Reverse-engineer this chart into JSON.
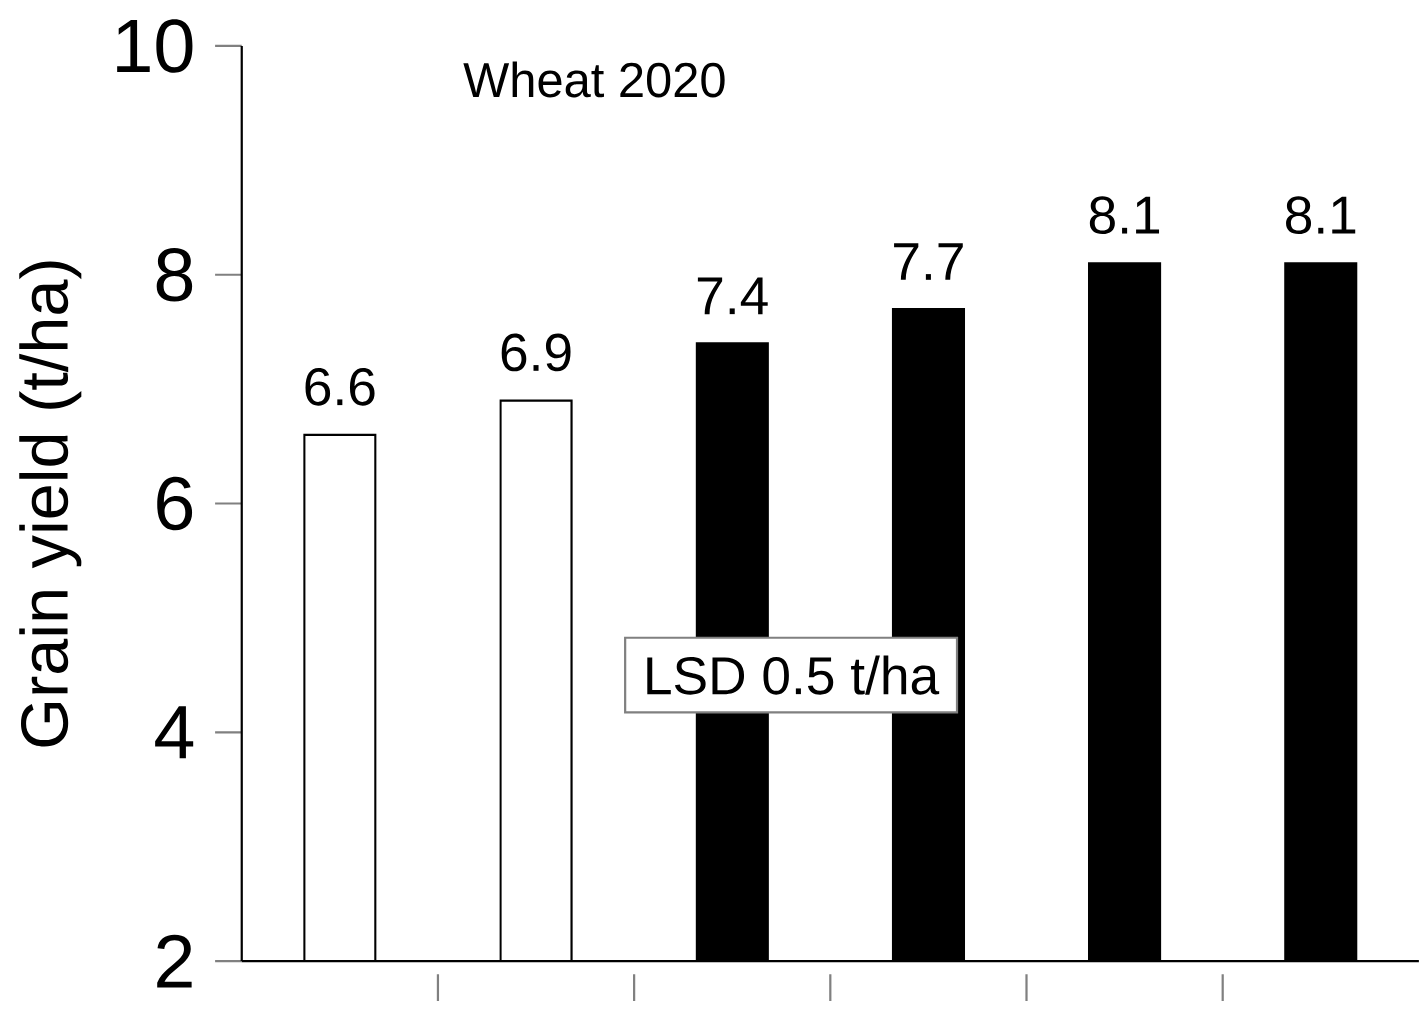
{
  "chart_data": {
    "type": "bar",
    "title": "Wheat 2020",
    "ylabel": "Grain yield  (t/ha)",
    "categories": [
      null,
      null,
      null,
      null,
      null,
      null
    ],
    "values": [
      6.6,
      6.9,
      7.4,
      7.7,
      8.1,
      8.1
    ],
    "colors": [
      "#ffffff",
      "#ffffff",
      "#000000",
      "#000000",
      "#000000",
      "#000000"
    ],
    "ylim": [
      2,
      10
    ],
    "yticks": [
      2,
      4,
      6,
      8,
      10
    ],
    "data_labels": true,
    "annotations": [
      "LSD 0.5 t/ha"
    ]
  }
}
